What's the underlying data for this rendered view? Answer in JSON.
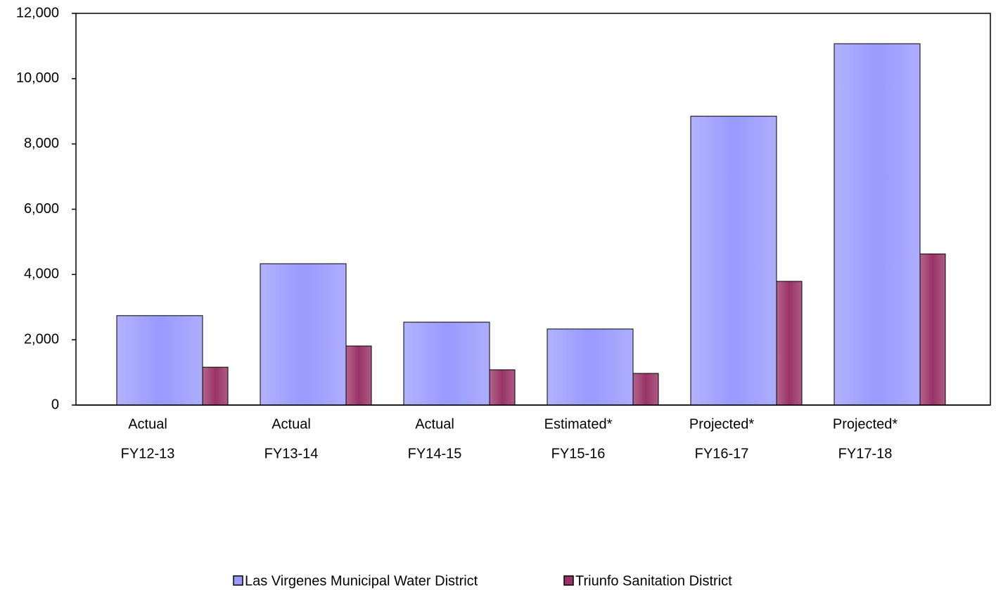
{
  "chart_data": {
    "type": "bar",
    "categories": [
      [
        "Actual",
        "FY12-13"
      ],
      [
        "Actual",
        "FY13-14"
      ],
      [
        "Actual",
        "FY14-15"
      ],
      [
        "Estimated*",
        "FY15-16"
      ],
      [
        "Projected*",
        "FY16-17"
      ],
      [
        "Projected*",
        "FY17-18"
      ]
    ],
    "series": [
      {
        "name": "Las Virgenes Municipal Water District",
        "color": "#9999ff",
        "values": [
          2740,
          4330,
          2540,
          2330,
          8850,
          11070
        ]
      },
      {
        "name": "Triunfo Sanitation District",
        "color": "#993366",
        "values": [
          1160,
          1810,
          1080,
          970,
          3790,
          4630
        ]
      }
    ],
    "ylim": [
      0,
      12000
    ],
    "yticks": [
      0,
      {
        "value": 2000,
        "label": "2,000"
      },
      {
        "value": 4000,
        "label": "4,000"
      },
      {
        "value": 6000,
        "label": "6,000"
      },
      {
        "value": 8000,
        "label": "8,000"
      },
      {
        "value": 10000,
        "label": "10,000"
      },
      {
        "value": 12000,
        "label": "12,000"
      }
    ],
    "legend": "bottom"
  }
}
